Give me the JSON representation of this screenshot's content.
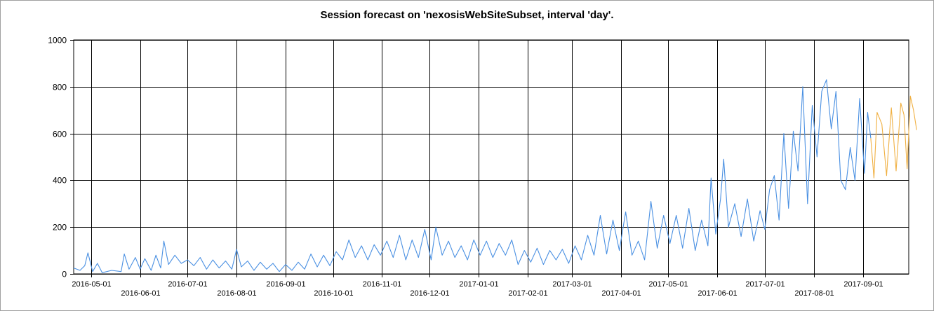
{
  "chart_data": {
    "type": "line",
    "title": "Session forecast on 'nexosisWebSiteSubset, interval 'day'.",
    "xlabel": "",
    "ylabel": "",
    "x_range": [
      "2016-04-20",
      "2017-09-30"
    ],
    "ylim": [
      0,
      1000
    ],
    "yticks": [
      0,
      200,
      400,
      600,
      800,
      1000
    ],
    "xticks": [
      "2016-05-01",
      "2016-06-01",
      "2016-07-01",
      "2016-08-01",
      "2016-09-01",
      "2016-10-01",
      "2016-11-01",
      "2016-12-01",
      "2017-01-01",
      "2017-02-01",
      "2017-03-01",
      "2017-04-01",
      "2017-05-01",
      "2017-06-01",
      "2017-07-01",
      "2017-08-01",
      "2017-09-01"
    ],
    "grid": true,
    "legend": "none",
    "series": [
      {
        "color": "#4a90e2",
        "points": [
          [
            "2016-04-20",
            25
          ],
          [
            "2016-04-24",
            15
          ],
          [
            "2016-04-27",
            35
          ],
          [
            "2016-04-29",
            90
          ],
          [
            "2016-05-02",
            10
          ],
          [
            "2016-05-05",
            45
          ],
          [
            "2016-05-08",
            5
          ],
          [
            "2016-05-14",
            15
          ],
          [
            "2016-05-20",
            10
          ],
          [
            "2016-05-22",
            85
          ],
          [
            "2016-05-25",
            20
          ],
          [
            "2016-05-29",
            70
          ],
          [
            "2016-06-01",
            20
          ],
          [
            "2016-06-04",
            65
          ],
          [
            "2016-06-08",
            15
          ],
          [
            "2016-06-11",
            80
          ],
          [
            "2016-06-14",
            25
          ],
          [
            "2016-06-16",
            140
          ],
          [
            "2016-06-19",
            40
          ],
          [
            "2016-06-23",
            80
          ],
          [
            "2016-06-27",
            45
          ],
          [
            "2016-07-01",
            60
          ],
          [
            "2016-07-05",
            35
          ],
          [
            "2016-07-09",
            70
          ],
          [
            "2016-07-13",
            20
          ],
          [
            "2016-07-17",
            60
          ],
          [
            "2016-07-21",
            25
          ],
          [
            "2016-07-25",
            55
          ],
          [
            "2016-07-29",
            20
          ],
          [
            "2016-08-01",
            105
          ],
          [
            "2016-08-04",
            30
          ],
          [
            "2016-08-08",
            55
          ],
          [
            "2016-08-12",
            15
          ],
          [
            "2016-08-16",
            50
          ],
          [
            "2016-08-20",
            20
          ],
          [
            "2016-08-24",
            45
          ],
          [
            "2016-08-28",
            10
          ],
          [
            "2016-09-01",
            40
          ],
          [
            "2016-09-05",
            15
          ],
          [
            "2016-09-09",
            50
          ],
          [
            "2016-09-13",
            20
          ],
          [
            "2016-09-17",
            85
          ],
          [
            "2016-09-21",
            30
          ],
          [
            "2016-09-25",
            80
          ],
          [
            "2016-09-29",
            35
          ],
          [
            "2016-10-03",
            95
          ],
          [
            "2016-10-07",
            60
          ],
          [
            "2016-10-11",
            145
          ],
          [
            "2016-10-15",
            70
          ],
          [
            "2016-10-19",
            120
          ],
          [
            "2016-10-23",
            60
          ],
          [
            "2016-10-27",
            125
          ],
          [
            "2016-10-31",
            80
          ],
          [
            "2016-11-04",
            140
          ],
          [
            "2016-11-08",
            70
          ],
          [
            "2016-11-12",
            165
          ],
          [
            "2016-11-16",
            60
          ],
          [
            "2016-11-20",
            145
          ],
          [
            "2016-11-24",
            70
          ],
          [
            "2016-11-28",
            190
          ],
          [
            "2016-12-02",
            60
          ],
          [
            "2016-12-05",
            200
          ],
          [
            "2016-12-09",
            80
          ],
          [
            "2016-12-13",
            140
          ],
          [
            "2016-12-17",
            70
          ],
          [
            "2016-12-21",
            120
          ],
          [
            "2016-12-25",
            60
          ],
          [
            "2016-12-29",
            145
          ],
          [
            "2017-01-02",
            80
          ],
          [
            "2017-01-06",
            140
          ],
          [
            "2017-01-10",
            70
          ],
          [
            "2017-01-14",
            130
          ],
          [
            "2017-01-18",
            80
          ],
          [
            "2017-01-22",
            145
          ],
          [
            "2017-01-26",
            40
          ],
          [
            "2017-01-30",
            100
          ],
          [
            "2017-02-03",
            50
          ],
          [
            "2017-02-07",
            110
          ],
          [
            "2017-02-11",
            40
          ],
          [
            "2017-02-15",
            100
          ],
          [
            "2017-02-19",
            60
          ],
          [
            "2017-02-23",
            105
          ],
          [
            "2017-02-27",
            45
          ],
          [
            "2017-03-03",
            120
          ],
          [
            "2017-03-07",
            60
          ],
          [
            "2017-03-11",
            165
          ],
          [
            "2017-03-15",
            80
          ],
          [
            "2017-03-19",
            250
          ],
          [
            "2017-03-23",
            85
          ],
          [
            "2017-03-27",
            230
          ],
          [
            "2017-03-31",
            100
          ],
          [
            "2017-04-04",
            265
          ],
          [
            "2017-04-08",
            80
          ],
          [
            "2017-04-12",
            140
          ],
          [
            "2017-04-16",
            60
          ],
          [
            "2017-04-20",
            310
          ],
          [
            "2017-04-24",
            110
          ],
          [
            "2017-04-28",
            250
          ],
          [
            "2017-05-02",
            130
          ],
          [
            "2017-05-06",
            250
          ],
          [
            "2017-05-10",
            110
          ],
          [
            "2017-05-14",
            280
          ],
          [
            "2017-05-18",
            100
          ],
          [
            "2017-05-22",
            230
          ],
          [
            "2017-05-26",
            120
          ],
          [
            "2017-05-28",
            410
          ],
          [
            "2017-05-31",
            170
          ],
          [
            "2017-06-03",
            320
          ],
          [
            "2017-06-05",
            490
          ],
          [
            "2017-06-08",
            200
          ],
          [
            "2017-06-12",
            300
          ],
          [
            "2017-06-16",
            160
          ],
          [
            "2017-06-20",
            320
          ],
          [
            "2017-06-24",
            140
          ],
          [
            "2017-06-28",
            270
          ],
          [
            "2017-07-01",
            190
          ],
          [
            "2017-07-04",
            360
          ],
          [
            "2017-07-07",
            420
          ],
          [
            "2017-07-10",
            230
          ],
          [
            "2017-07-13",
            600
          ],
          [
            "2017-07-16",
            280
          ],
          [
            "2017-07-19",
            610
          ],
          [
            "2017-07-22",
            440
          ],
          [
            "2017-07-25",
            800
          ],
          [
            "2017-07-28",
            300
          ],
          [
            "2017-07-31",
            720
          ],
          [
            "2017-08-03",
            500
          ],
          [
            "2017-08-06",
            780
          ],
          [
            "2017-08-09",
            830
          ],
          [
            "2017-08-12",
            620
          ],
          [
            "2017-08-15",
            780
          ],
          [
            "2017-08-18",
            400
          ],
          [
            "2017-08-21",
            360
          ],
          [
            "2017-08-24",
            540
          ],
          [
            "2017-08-27",
            400
          ],
          [
            "2017-08-30",
            750
          ],
          [
            "2017-09-02",
            430
          ],
          [
            "2017-09-04",
            690
          ],
          [
            "2017-09-06",
            580
          ]
        ]
      },
      {
        "color": "#f0b042",
        "points": [
          [
            "2017-09-06",
            580
          ],
          [
            "2017-09-08",
            410
          ],
          [
            "2017-09-10",
            690
          ],
          [
            "2017-09-13",
            640
          ],
          [
            "2017-09-16",
            420
          ],
          [
            "2017-09-19",
            710
          ],
          [
            "2017-09-22",
            440
          ],
          [
            "2017-09-25",
            730
          ],
          [
            "2017-09-27",
            680
          ],
          [
            "2017-09-29",
            450
          ],
          [
            "2017-10-01",
            760
          ],
          [
            "2017-10-03",
            700
          ],
          [
            "2017-10-05",
            615
          ]
        ]
      }
    ]
  }
}
